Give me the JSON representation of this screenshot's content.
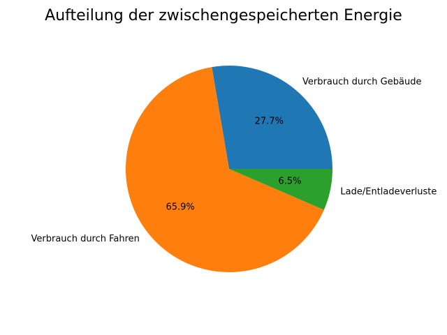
{
  "chart_data": {
    "type": "pie",
    "title": "Aufteilung der zwischengespeicherten Energie",
    "labels": [
      "Verbrauch durch Gebäude",
      "Verbrauch durch Fahren",
      "Lade/Entladeverluste"
    ],
    "values": [
      27.7,
      65.9,
      6.5
    ],
    "percent_labels": [
      "27.7%",
      "65.9%",
      "6.5%"
    ],
    "colors": [
      "#1f77b4",
      "#ff7f0e",
      "#2ca02c"
    ],
    "start_angle_deg": 0,
    "direction": "counterclockwise"
  }
}
